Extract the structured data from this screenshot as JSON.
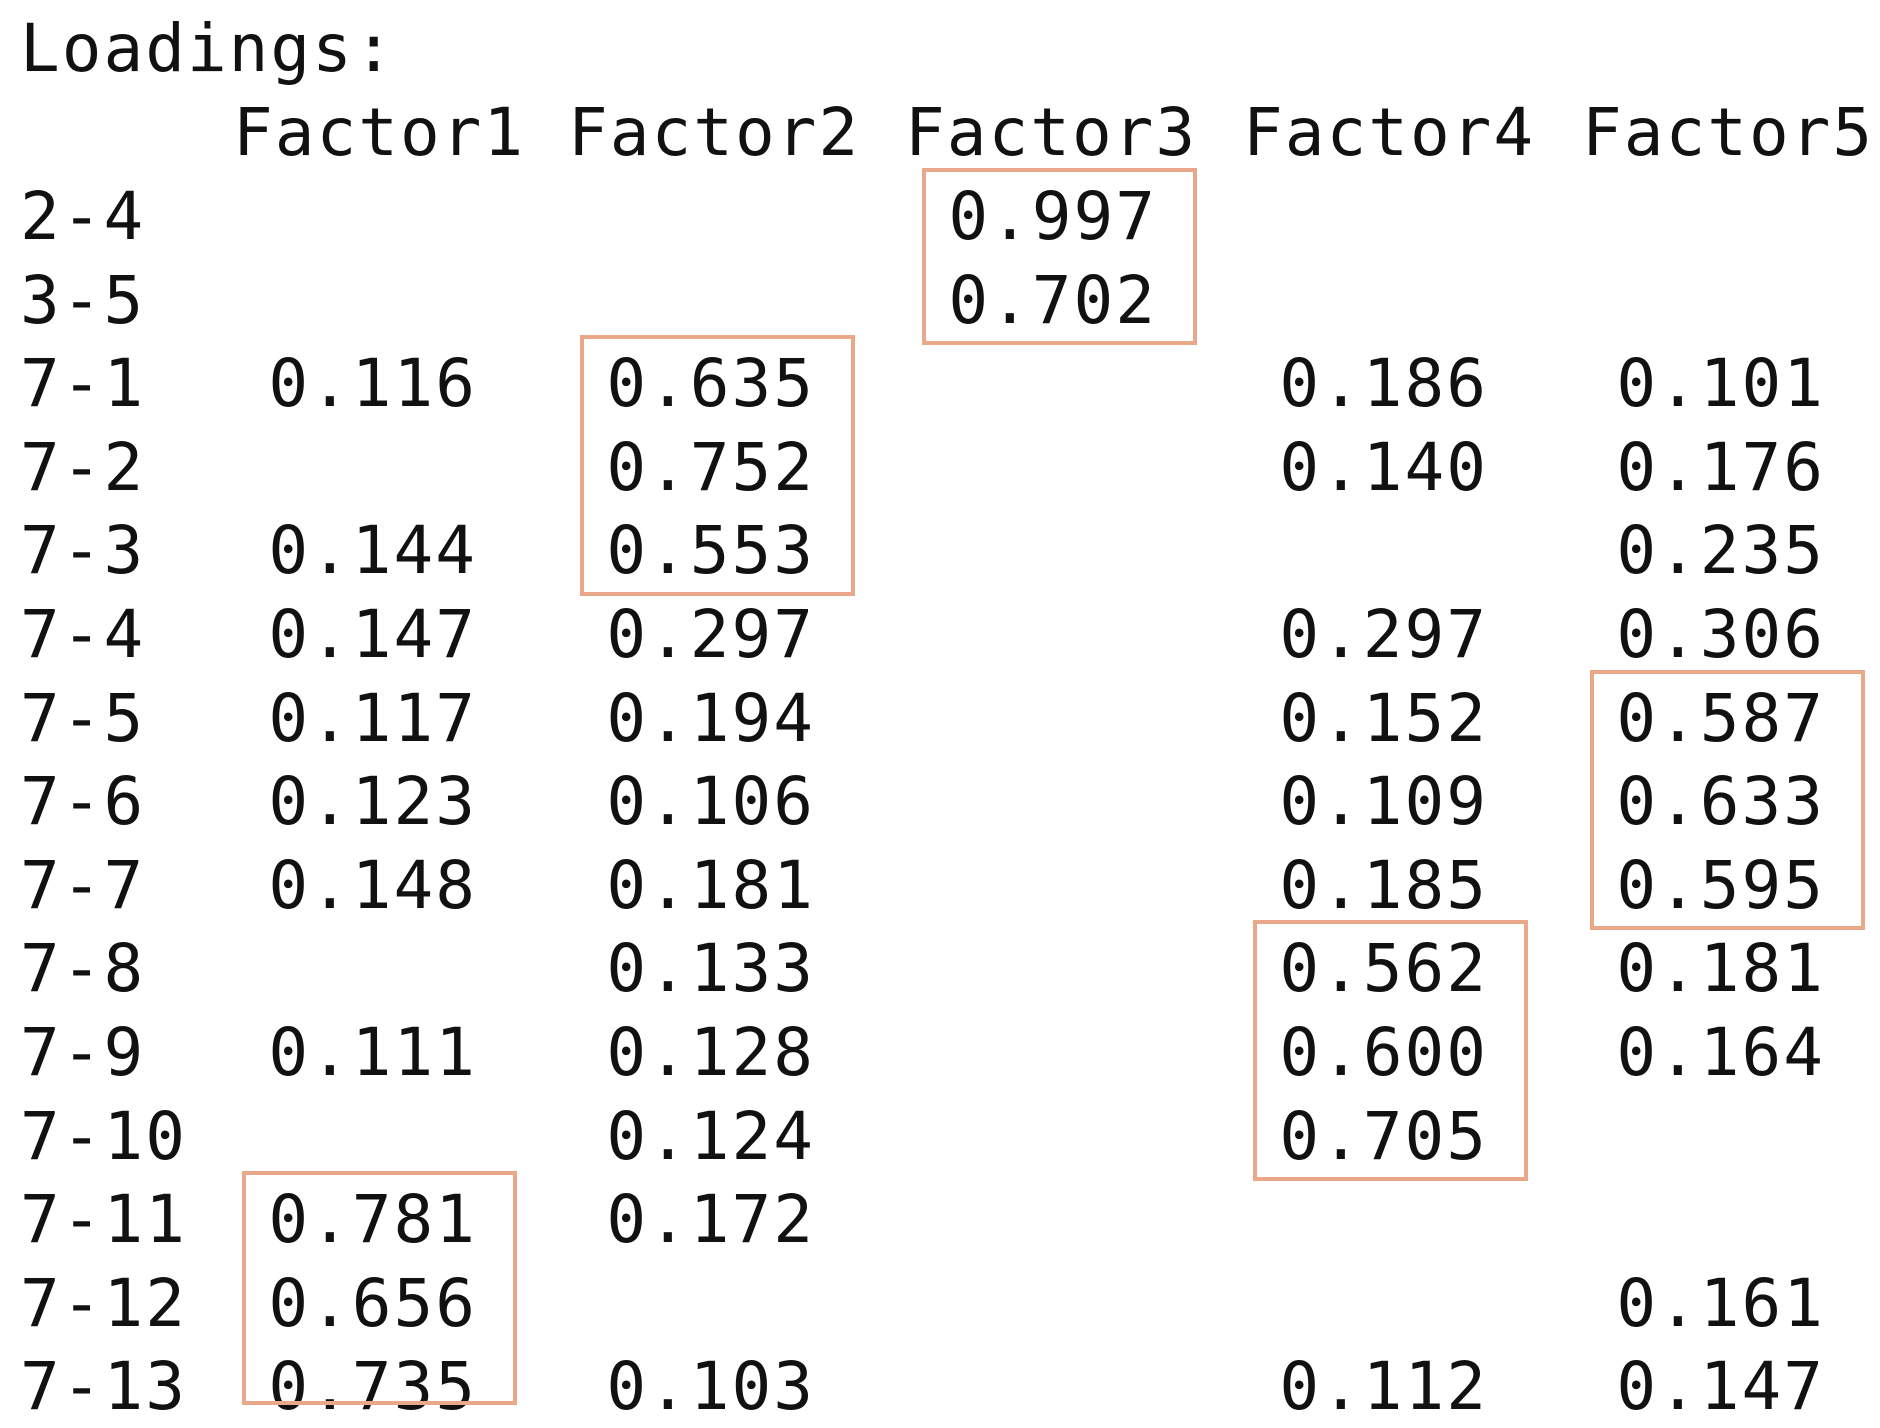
{
  "title": "Loadings:",
  "columns": [
    "Factor1",
    "Factor2",
    "Factor3",
    "Factor4",
    "Factor5"
  ],
  "rows": [
    {
      "label": "2-4",
      "values": [
        "",
        "",
        "0.997",
        "",
        ""
      ]
    },
    {
      "label": "3-5",
      "values": [
        "",
        "",
        "0.702",
        "",
        ""
      ]
    },
    {
      "label": "7-1",
      "values": [
        "0.116",
        "0.635",
        "",
        "0.186",
        "0.101"
      ]
    },
    {
      "label": "7-2",
      "values": [
        "",
        "0.752",
        "",
        "0.140",
        "0.176"
      ]
    },
    {
      "label": "7-3",
      "values": [
        "0.144",
        "0.553",
        "",
        "",
        "0.235"
      ]
    },
    {
      "label": "7-4",
      "values": [
        "0.147",
        "0.297",
        "",
        "0.297",
        "0.306"
      ]
    },
    {
      "label": "7-5",
      "values": [
        "0.117",
        "0.194",
        "",
        "0.152",
        "0.587"
      ]
    },
    {
      "label": "7-6",
      "values": [
        "0.123",
        "0.106",
        "",
        "0.109",
        "0.633"
      ]
    },
    {
      "label": "7-7",
      "values": [
        "0.148",
        "0.181",
        "",
        "0.185",
        "0.595"
      ]
    },
    {
      "label": "7-8",
      "values": [
        "",
        "0.133",
        "",
        "0.562",
        "0.181"
      ]
    },
    {
      "label": "7-9",
      "values": [
        "0.111",
        "0.128",
        "",
        "0.600",
        "0.164"
      ]
    },
    {
      "label": "7-10",
      "values": [
        "",
        "0.124",
        "",
        "0.705",
        ""
      ]
    },
    {
      "label": "7-11",
      "values": [
        "0.781",
        "0.172",
        "",
        "",
        ""
      ]
    },
    {
      "label": "7-12",
      "values": [
        "0.656",
        "",
        "",
        "",
        "0.161"
      ]
    },
    {
      "label": "7-13",
      "values": [
        "0.735",
        "0.103",
        "",
        "0.112",
        "0.147"
      ]
    }
  ],
  "highlight_color": "#e9a88a",
  "highlight_groups": [
    {
      "column": "Factor3",
      "rows": [
        "2-4",
        "3-5"
      ]
    },
    {
      "column": "Factor2",
      "rows": [
        "7-1",
        "7-2",
        "7-3"
      ]
    },
    {
      "column": "Factor5",
      "rows": [
        "7-5",
        "7-6",
        "7-7"
      ]
    },
    {
      "column": "Factor4",
      "rows": [
        "7-8",
        "7-9",
        "7-10"
      ]
    },
    {
      "column": "Factor1",
      "rows": [
        "7-11",
        "7-12",
        "7-13"
      ]
    }
  ]
}
